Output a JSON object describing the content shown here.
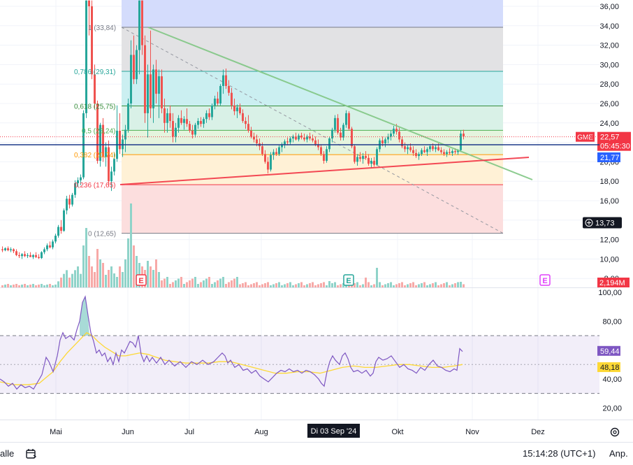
{
  "chart_data": {
    "type": "candlestick",
    "symbol": "GME",
    "x_axis": {
      "ticks": [
        "Mai",
        "Jun",
        "Jul",
        "Aug",
        "Okt",
        "Nov",
        "Dez"
      ],
      "crosshair_label": "Di 03 Sep '24"
    },
    "price_axis": {
      "ticks": [
        "36,00",
        "34,00",
        "32,00",
        "30,00",
        "28,00",
        "26,00",
        "24,00",
        "22,00",
        "20,00",
        "18,00",
        "16,00",
        "14,00",
        "12,00",
        "10,00",
        "8,00"
      ],
      "range": [
        8,
        36.8
      ]
    },
    "price_labels": {
      "last_price": "22,57",
      "countdown": "05:45:30",
      "crosshair_price": "21,77",
      "cursor_price": "13,73",
      "volume_value": "2,194M"
    },
    "fibonacci": [
      {
        "level": "1",
        "price": 33.84,
        "label": "1 (33,84)",
        "color": "#787b86"
      },
      {
        "level": "0.786",
        "price": 29.31,
        "label": "0,786 (29,31)",
        "color": "#26a69a"
      },
      {
        "level": "0.618",
        "price": 25.75,
        "label": "0,618 (25,75)",
        "color": "#388e3c"
      },
      {
        "level": "0.5",
        "price": 23.24,
        "label": "0,5 (23,24)",
        "color": "#4caf50"
      },
      {
        "level": "0.382",
        "price": 20.74,
        "label": "0,382 (20,74)",
        "color": "#ff9800"
      },
      {
        "level": "0.236",
        "price": 17.65,
        "label": "0,236 (17,65)",
        "color": "#f23645"
      },
      {
        "level": "0",
        "price": 12.65,
        "label": "0 (12,65)",
        "color": "#787b86"
      }
    ],
    "rsi": {
      "axis_ticks": [
        "100,00",
        "80,00",
        "40,00",
        "20,00"
      ],
      "rsi_value": "59,44",
      "ma_value": "48,18",
      "band_upper": 70,
      "band_lower": 30
    },
    "earnings_markers": [
      "E",
      "E",
      "E"
    ],
    "colors": {
      "up": "#26a69a",
      "down": "#ef5350",
      "rsi_line": "#7e57c2",
      "rsi_ma": "#fdd835",
      "trendline_green": "#81c784",
      "trendline_red": "#f23645"
    }
  },
  "bottom_bar": {
    "left_label": "alle",
    "time": "15:14:28 (UTC+1)",
    "adjust": "Anp."
  }
}
